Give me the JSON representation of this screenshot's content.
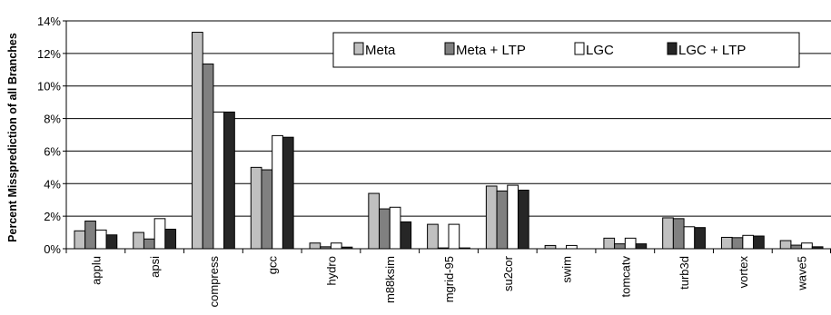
{
  "chart_data": {
    "type": "bar",
    "title": "",
    "xlabel": "",
    "ylabel": "Percent Missprediction of all Branches",
    "ylim": [
      0,
      14
    ],
    "yticks": [
      "0%",
      "2%",
      "4%",
      "6%",
      "8%",
      "10%",
      "12%",
      "14%"
    ],
    "ytick_values": [
      0,
      2,
      4,
      6,
      8,
      10,
      12,
      14
    ],
    "grid": "horizontal",
    "legend_position": "top-right",
    "categories": [
      "applu",
      "apsi",
      "compress",
      "gcc",
      "hydro",
      "m88ksim",
      "mgrid-95",
      "su2cor",
      "swim",
      "tomcatv",
      "turb3d",
      "vortex",
      "wave5"
    ],
    "series": [
      {
        "name": "Meta",
        "color": "#c0c0c0",
        "values": [
          1.1,
          1.0,
          13.3,
          5.0,
          0.35,
          3.4,
          1.5,
          3.85,
          0.2,
          0.65,
          1.9,
          0.7,
          0.5
        ]
      },
      {
        "name": "Meta + LTP",
        "color": "#808080",
        "values": [
          1.7,
          0.6,
          11.35,
          4.85,
          0.12,
          2.45,
          0.05,
          3.55,
          0.0,
          0.3,
          1.85,
          0.68,
          0.22
        ]
      },
      {
        "name": "LGC",
        "color": "#ffffff",
        "values": [
          1.15,
          1.85,
          8.4,
          6.95,
          0.35,
          2.55,
          1.5,
          3.9,
          0.2,
          0.65,
          1.35,
          0.82,
          0.35
        ]
      },
      {
        "name": "LGC + LTP",
        "color": "#262626",
        "values": [
          0.85,
          1.2,
          8.4,
          6.85,
          0.1,
          1.65,
          0.05,
          3.6,
          0.0,
          0.3,
          1.3,
          0.78,
          0.12
        ]
      }
    ]
  }
}
